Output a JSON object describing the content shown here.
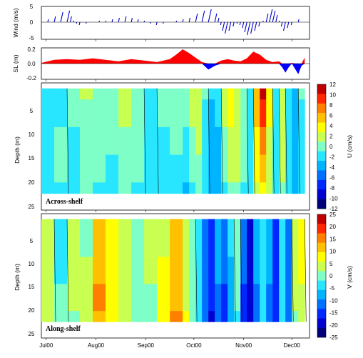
{
  "chart_data": [
    {
      "type": "line",
      "ylabel": "Wind (m/s)",
      "ylim": [
        -5,
        5
      ],
      "yticks": [
        "5",
        "0",
        "-5"
      ],
      "color": "#0000cc",
      "x_range": [
        "Jul00",
        "Dec00"
      ],
      "note": "wind stick plot",
      "x": [
        0,
        4,
        8,
        12,
        16,
        18,
        20,
        22,
        24,
        28,
        32,
        36,
        40,
        44,
        48,
        52,
        56,
        60,
        64,
        68,
        72,
        76,
        80,
        84,
        88,
        92,
        96,
        100,
        104,
        108,
        110,
        112,
        114,
        116,
        118,
        120,
        122,
        124,
        126,
        128,
        130,
        132,
        134,
        136,
        138,
        140,
        142,
        144,
        146,
        148,
        150,
        152,
        154,
        156,
        158,
        160,
        162,
        164
      ],
      "values": [
        0,
        1,
        2,
        3.5,
        4,
        2,
        0.5,
        -0.5,
        -1,
        -0.5,
        0,
        0.5,
        0.5,
        1,
        1.5,
        2,
        1.5,
        1,
        0.5,
        -0.5,
        -1,
        -0.5,
        0,
        0.5,
        1,
        1.5,
        3,
        4,
        4.5,
        3,
        1.5,
        -1,
        -3,
        -4,
        -3,
        -1.5,
        -0.5,
        -1,
        -2,
        -3.5,
        -4.5,
        -4,
        -3,
        -1.5,
        0.5,
        3,
        4.5,
        4,
        2.5,
        0.5,
        -1.5,
        -3,
        -2,
        -1,
        0,
        1,
        0,
        0
      ]
    },
    {
      "type": "area",
      "ylabel": "SL (m)",
      "ylim": [
        -0.2,
        0.2
      ],
      "yticks": [
        "0.2",
        "0.0",
        "-0.2"
      ],
      "colors": {
        "positive": "#ff0000",
        "negative": "#0000ff"
      },
      "x": [
        0,
        8,
        16,
        24,
        32,
        40,
        48,
        56,
        64,
        72,
        80,
        84,
        88,
        92,
        96,
        100,
        104,
        108,
        112,
        116,
        120,
        124,
        128,
        132,
        136,
        140,
        144,
        148,
        150,
        152,
        154,
        156,
        158,
        160,
        162,
        164
      ],
      "values": [
        0.01,
        0.05,
        0.06,
        0.05,
        0.07,
        0.05,
        0.03,
        0.06,
        0.04,
        0.02,
        0.06,
        0.12,
        0.19,
        0.14,
        0.08,
        0.02,
        -0.08,
        -0.03,
        0.04,
        0.06,
        0.04,
        0.03,
        0.07,
        0.16,
        0.12,
        0.05,
        0.02,
        0.03,
        -0.05,
        -0.12,
        -0.05,
        0.01,
        -0.07,
        -0.14,
        -0.03,
        0.08
      ]
    },
    {
      "type": "heatmap",
      "title": "Across-shelf",
      "ylabel": "Depth (m)",
      "yticks": [
        "5",
        "10",
        "15",
        "20",
        "25"
      ],
      "ylim": [
        25,
        2
      ],
      "colorbar_label": "U (cm/s)",
      "colorbar_ticks": [
        "12",
        "10",
        "8",
        "6",
        "4",
        "2",
        "0",
        "-2",
        "-4",
        "-6",
        "-8",
        "-10",
        "-12"
      ],
      "vmin": -12,
      "vmax": 12,
      "x_days": [
        0,
        8,
        16,
        24,
        32,
        40,
        48,
        56,
        64,
        72,
        80,
        88,
        92,
        96,
        100,
        104,
        108,
        112,
        116,
        120,
        124,
        128,
        132,
        136,
        140,
        144,
        148,
        152,
        156,
        160,
        164
      ],
      "depths": [
        3,
        5,
        10,
        15,
        20,
        22
      ],
      "values": [
        [
          -1,
          -1,
          0,
          1,
          0,
          0,
          1,
          0,
          -1,
          0,
          0,
          0,
          1,
          2,
          0,
          -2,
          -2,
          1,
          3,
          2,
          0,
          -1,
          6,
          11,
          3,
          -2,
          2,
          -1,
          -3,
          0,
          1
        ],
        [
          -1,
          -1,
          0,
          0,
          0,
          0,
          1,
          0,
          -1,
          0,
          0,
          0,
          1,
          1,
          -1,
          -3,
          -2,
          1,
          3,
          2,
          0,
          -1,
          5,
          9,
          3,
          -2,
          2,
          -1,
          -3,
          -1,
          1
        ],
        [
          -1,
          0,
          -1,
          0,
          0,
          0,
          0,
          0,
          -1,
          -1,
          0,
          -2,
          0,
          1,
          -1,
          -3,
          -3,
          0,
          2,
          1,
          0,
          -1,
          4,
          7,
          2,
          -2,
          1,
          -2,
          -3,
          -1,
          0
        ],
        [
          -1,
          0,
          -1,
          0,
          0,
          -1,
          0,
          0,
          -1,
          -1,
          -1,
          -2,
          0,
          0,
          -2,
          -3,
          -3,
          0,
          1,
          1,
          0,
          -1,
          3,
          5,
          1,
          -2,
          1,
          -2,
          -3,
          -1,
          0
        ],
        [
          -1,
          -1,
          -1,
          0,
          -1,
          -1,
          0,
          -1,
          -1,
          -2,
          -1,
          -3,
          -2,
          0,
          -2,
          -4,
          -3,
          -1,
          0,
          0,
          -1,
          -1,
          2,
          3,
          1,
          -2,
          0,
          -2,
          -3,
          -1,
          0
        ],
        [
          -1,
          -1,
          -1,
          0,
          -1,
          -1,
          0,
          -1,
          -1,
          -2,
          -1,
          -3,
          -2,
          0,
          -2,
          -4,
          -3,
          -1,
          0,
          0,
          -1,
          -1,
          2,
          3,
          1,
          -2,
          0,
          -2,
          -3,
          -1,
          0
        ]
      ]
    },
    {
      "type": "heatmap",
      "title": "Along-shelf",
      "ylabel": "Depth (m)",
      "yticks": [
        "5",
        "10",
        "15",
        "20",
        "25"
      ],
      "ylim": [
        25,
        2
      ],
      "colorbar_label": "V (cm/s)",
      "colorbar_ticks": [
        "25",
        "20",
        "15",
        "10",
        "5",
        "0",
        "-5",
        "-10",
        "-15",
        "-20",
        "-25"
      ],
      "vmin": -25,
      "vmax": 25,
      "x_days": [
        0,
        8,
        16,
        24,
        32,
        40,
        48,
        56,
        64,
        72,
        80,
        88,
        92,
        96,
        100,
        104,
        108,
        112,
        116,
        120,
        124,
        128,
        132,
        136,
        140,
        144,
        148,
        152,
        156,
        160,
        164
      ],
      "depths": [
        3,
        5,
        10,
        15,
        20,
        22
      ],
      "values": [
        [
          5,
          -2,
          3,
          1,
          12,
          7,
          3,
          0,
          2,
          5,
          10,
          3,
          0,
          -3,
          -10,
          -15,
          -8,
          -12,
          -5,
          0,
          -12,
          -18,
          -8,
          -2,
          -8,
          -14,
          -3,
          -10,
          3,
          6,
          -3
        ],
        [
          5,
          -2,
          3,
          1,
          12,
          7,
          3,
          0,
          2,
          5,
          10,
          3,
          0,
          -3,
          -10,
          -15,
          -8,
          -12,
          -5,
          0,
          -12,
          -18,
          -8,
          -2,
          -8,
          -14,
          -3,
          -10,
          3,
          6,
          -3
        ],
        [
          4,
          -2,
          2,
          2,
          13,
          8,
          3,
          0,
          2,
          6,
          11,
          4,
          0,
          -3,
          -11,
          -16,
          -9,
          -13,
          -6,
          0,
          -13,
          -19,
          -9,
          -3,
          -9,
          -15,
          -3,
          -11,
          3,
          6,
          -3
        ],
        [
          3,
          -1,
          2,
          3,
          14,
          9,
          3,
          0,
          1,
          7,
          13,
          5,
          0,
          -4,
          -12,
          -17,
          -10,
          -14,
          -7,
          -1,
          -14,
          -20,
          -10,
          -4,
          -10,
          -16,
          -4,
          -12,
          2,
          5,
          -2
        ],
        [
          2,
          -1,
          1,
          2,
          11,
          7,
          2,
          0,
          1,
          6,
          14,
          6,
          0,
          -4,
          -12,
          -18,
          -11,
          -15,
          -8,
          -2,
          -15,
          -21,
          -11,
          -4,
          -11,
          -17,
          -5,
          -13,
          1,
          4,
          -2
        ],
        [
          2,
          -1,
          1,
          2,
          11,
          7,
          2,
          0,
          1,
          6,
          14,
          6,
          0,
          -4,
          -12,
          -18,
          -11,
          -15,
          -8,
          -2,
          -15,
          -21,
          -11,
          -4,
          -11,
          -17,
          -5,
          -13,
          1,
          4,
          -2
        ]
      ]
    }
  ],
  "time_axis": {
    "labels": [
      "Jul00",
      "Aug00",
      "Sep00",
      "Oct00",
      "Nov00",
      "Dec00"
    ],
    "label_days": [
      3,
      34,
      65,
      95,
      126,
      156
    ],
    "xlim": [
      0,
      167
    ]
  },
  "heatmap_palette": [
    "#00007a",
    "#0000d0",
    "#0028ff",
    "#0070ff",
    "#00b4ff",
    "#28e6ff",
    "#7fffc8",
    "#c8ff50",
    "#ffff00",
    "#ffc000",
    "#ff8000",
    "#ff2800",
    "#c00000"
  ]
}
